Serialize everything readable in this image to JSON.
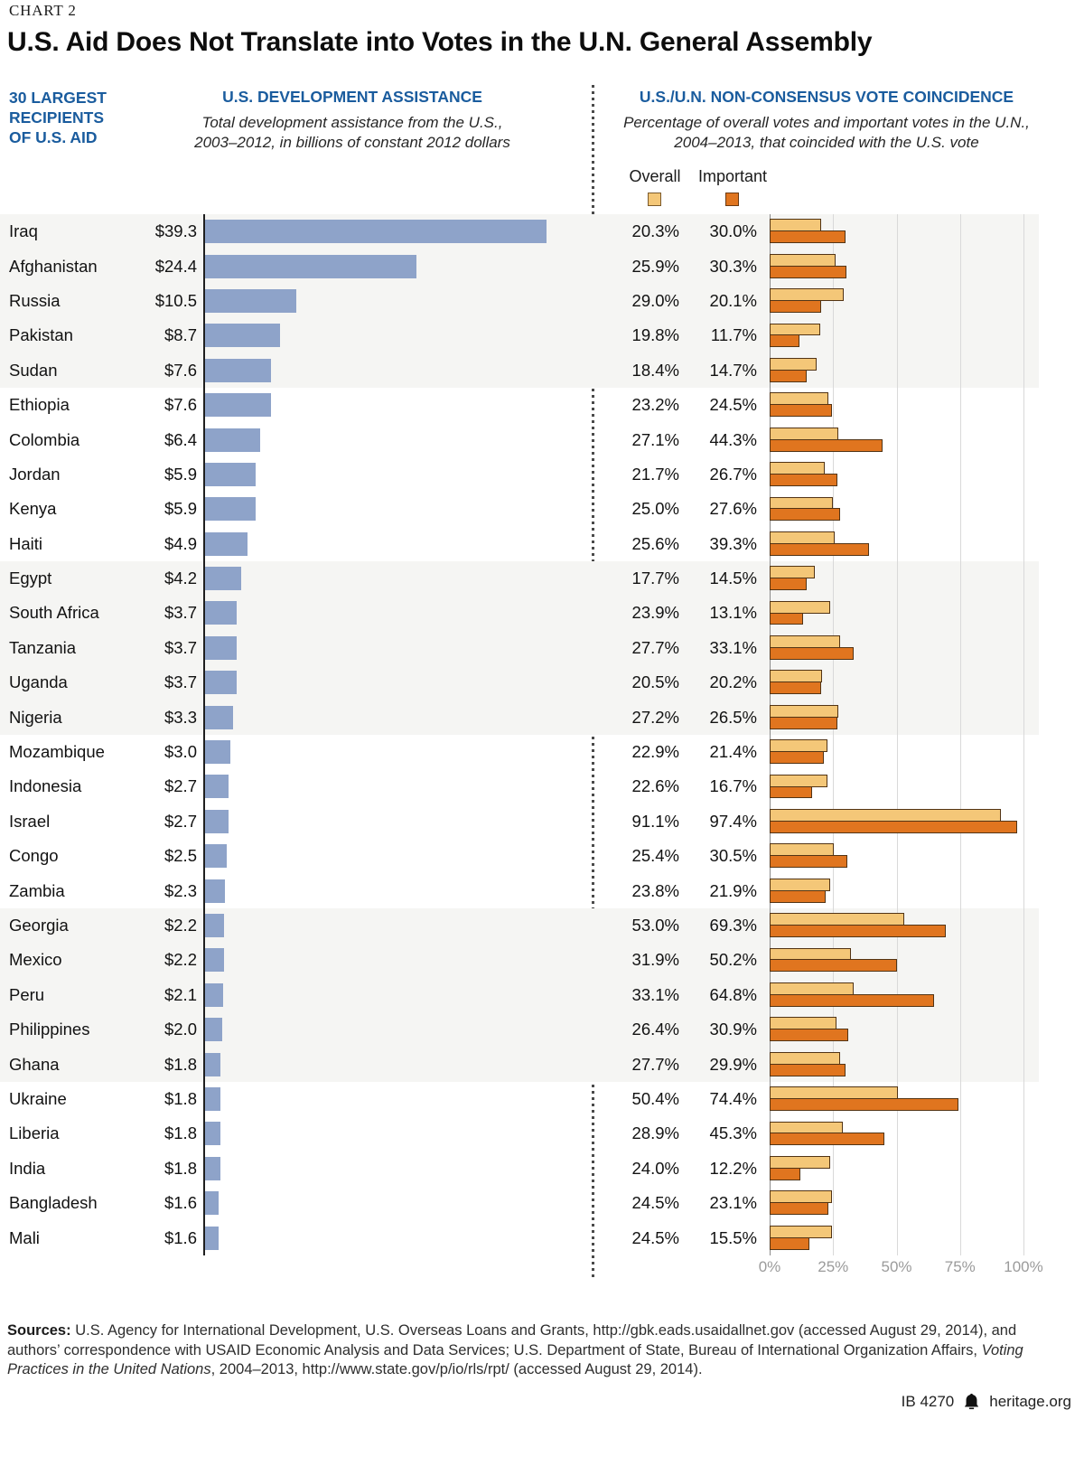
{
  "chart_label": "CHART 2",
  "title": "U.S. Aid Does Not Translate into Votes in the U.N. General Assembly",
  "recipients_header": {
    "lines": [
      "30 LARGEST",
      "RECIPIENTS",
      "OF U.S. AID"
    ]
  },
  "aid_header": {
    "title": "U.S. DEVELOPMENT ASSISTANCE",
    "subtitle": "Total development assistance from the U.S., 2003–2012, in billions of constant 2012 dollars"
  },
  "vote_header": {
    "title": "U.S./U.N. NON-CONSENSUS VOTE COINCIDENCE",
    "subtitle": "Percentage of overall votes and important votes in the U.N., 2004–2013, that coincided with the U.S. vote"
  },
  "legend": {
    "overall": "Overall",
    "important": "Important"
  },
  "colors": {
    "header_blue": "#1a5c9e",
    "aid_bar_blue": "#8ea3c9",
    "overall_tan": "#f4c778",
    "important_orange": "#e0751f",
    "bar_outline": "#523415",
    "band_gray": "#f5f5f3"
  },
  "chart_data": {
    "type": "bar",
    "orientation": "horizontal",
    "categories": [
      "Iraq",
      "Afghanistan",
      "Russia",
      "Pakistan",
      "Sudan",
      "Ethiopia",
      "Colombia",
      "Jordan",
      "Kenya",
      "Haiti",
      "Egypt",
      "South Africa",
      "Tanzania",
      "Uganda",
      "Nigeria",
      "Mozambique",
      "Indonesia",
      "Israel",
      "Congo",
      "Zambia",
      "Georgia",
      "Mexico",
      "Peru",
      "Philippines",
      "Ghana",
      "Ukraine",
      "Liberia",
      "India",
      "Bangladesh",
      "Mali"
    ],
    "series": [
      {
        "name": "U.S. Development Assistance",
        "unit": "billions of constant 2012 dollars",
        "color": "#8ea3c9",
        "values": [
          39.3,
          24.4,
          10.5,
          8.7,
          7.6,
          7.6,
          6.4,
          5.9,
          5.9,
          4.9,
          4.2,
          3.7,
          3.7,
          3.7,
          3.3,
          3.0,
          2.7,
          2.7,
          2.5,
          2.3,
          2.2,
          2.2,
          2.1,
          2.0,
          1.8,
          1.8,
          1.8,
          1.8,
          1.6,
          1.6
        ],
        "labels": [
          "$39.3",
          "$24.4",
          "$10.5",
          "$8.7",
          "$7.6",
          "$7.6",
          "$6.4",
          "$5.9",
          "$5.9",
          "$4.9",
          "$4.2",
          "$3.7",
          "$3.7",
          "$3.7",
          "$3.3",
          "$3.0",
          "$2.7",
          "$2.7",
          "$2.5",
          "$2.3",
          "$2.2",
          "$2.2",
          "$2.1",
          "$2.0",
          "$1.8",
          "$1.8",
          "$1.8",
          "$1.8",
          "$1.6",
          "$1.6"
        ]
      },
      {
        "name": "Overall",
        "unit": "%",
        "color": "#f4c778",
        "values": [
          20.3,
          25.9,
          29.0,
          19.8,
          18.4,
          23.2,
          27.1,
          21.7,
          25.0,
          25.6,
          17.7,
          23.9,
          27.7,
          20.5,
          27.2,
          22.9,
          22.6,
          91.1,
          25.4,
          23.8,
          53.0,
          31.9,
          33.1,
          26.4,
          27.7,
          50.4,
          28.9,
          24.0,
          24.5,
          24.5
        ],
        "labels": [
          "20.3%",
          "25.9%",
          "29.0%",
          "19.8%",
          "18.4%",
          "23.2%",
          "27.1%",
          "21.7%",
          "25.0%",
          "25.6%",
          "17.7%",
          "23.9%",
          "27.7%",
          "20.5%",
          "27.2%",
          "22.9%",
          "22.6%",
          "91.1%",
          "25.4%",
          "23.8%",
          "53.0%",
          "31.9%",
          "33.1%",
          "26.4%",
          "27.7%",
          "50.4%",
          "28.9%",
          "24.0%",
          "24.5%",
          "24.5%"
        ]
      },
      {
        "name": "Important",
        "unit": "%",
        "color": "#e0751f",
        "values": [
          30.0,
          30.3,
          20.1,
          11.7,
          14.7,
          24.5,
          44.3,
          26.7,
          27.6,
          39.3,
          14.5,
          13.1,
          33.1,
          20.2,
          26.5,
          21.4,
          16.7,
          97.4,
          30.5,
          21.9,
          69.3,
          50.2,
          64.8,
          30.9,
          29.9,
          74.4,
          45.3,
          12.2,
          23.1,
          15.5
        ],
        "labels": [
          "30.0%",
          "30.3%",
          "20.1%",
          "11.7%",
          "14.7%",
          "24.5%",
          "44.3%",
          "26.7%",
          "27.6%",
          "39.3%",
          "14.5%",
          "13.1%",
          "33.1%",
          "20.2%",
          "26.5%",
          "21.4%",
          "16.7%",
          "97.4%",
          "30.5%",
          "21.9%",
          "69.3%",
          "50.2%",
          "64.8%",
          "30.9%",
          "29.9%",
          "74.4%",
          "45.3%",
          "12.2%",
          "23.1%",
          "15.5%"
        ]
      }
    ],
    "aid_axis": {
      "max": 40,
      "grid": false
    },
    "vote_axis": {
      "min": 0,
      "max": 100,
      "ticks": [
        "0%",
        "25%",
        "50%",
        "75%",
        "100%"
      ],
      "tick_values": [
        0,
        25,
        50,
        75,
        100
      ],
      "grid": true
    },
    "legend_position": "top-right",
    "band_group_size": 5
  },
  "footer": {
    "sources_bold": "Sources:",
    "sources_text_1": " U.S. Agency for International Development, U.S. Overseas Loans and Grants, http://gbk.eads.usaidallnet.gov (accessed August 29, 2014), and authors’ correspondence with USAID Economic Analysis and Data Services; U.S. Department of State, Bureau of International Organization Affairs, ",
    "sources_italic": "Voting Practices in the United Nations",
    "sources_text_2": ", 2004–2013, http://www.state.gov/p/io/rls/rpt/ (accessed August 29, 2014)."
  },
  "credit": {
    "issue": "IB 4270",
    "site": "heritage.org",
    "icon": "heritage-bell"
  }
}
